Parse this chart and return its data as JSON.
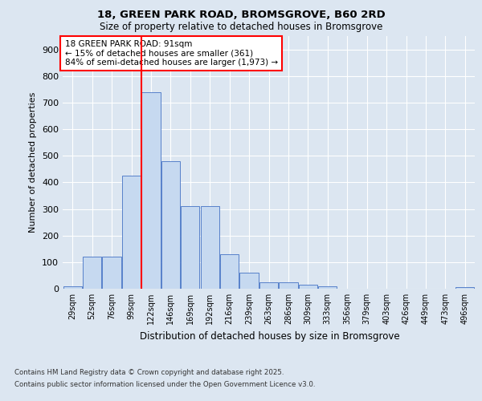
{
  "title_line1": "18, GREEN PARK ROAD, BROMSGROVE, B60 2RD",
  "title_line2": "Size of property relative to detached houses in Bromsgrove",
  "xlabel": "Distribution of detached houses by size in Bromsgrove",
  "ylabel": "Number of detached properties",
  "categories": [
    "29sqm",
    "52sqm",
    "76sqm",
    "99sqm",
    "122sqm",
    "146sqm",
    "169sqm",
    "192sqm",
    "216sqm",
    "239sqm",
    "263sqm",
    "286sqm",
    "309sqm",
    "333sqm",
    "356sqm",
    "379sqm",
    "403sqm",
    "426sqm",
    "449sqm",
    "473sqm",
    "496sqm"
  ],
  "values": [
    10,
    120,
    120,
    425,
    740,
    480,
    310,
    310,
    130,
    60,
    25,
    25,
    15,
    10,
    0,
    0,
    0,
    0,
    0,
    0,
    5
  ],
  "bar_color": "#c6d9f0",
  "bar_edge_color": "#4472c4",
  "background_color": "#dce6f1",
  "plot_bg_color": "#dce6f1",
  "grid_color": "#ffffff",
  "vline_x_index": 3.5,
  "vline_color": "#ff0000",
  "annotation_text": "18 GREEN PARK ROAD: 91sqm\n← 15% of detached houses are smaller (361)\n84% of semi-detached houses are larger (1,973) →",
  "annotation_box_color": "#ffffff",
  "annotation_box_edge_color": "#ff0000",
  "ylim": [
    0,
    950
  ],
  "yticks": [
    0,
    100,
    200,
    300,
    400,
    500,
    600,
    700,
    800,
    900
  ],
  "footer_line1": "Contains HM Land Registry data © Crown copyright and database right 2025.",
  "footer_line2": "Contains public sector information licensed under the Open Government Licence v3.0."
}
